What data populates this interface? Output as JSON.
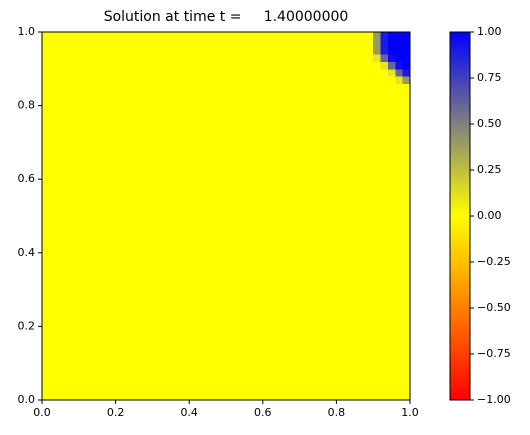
{
  "chart_data": {
    "type": "heatmap",
    "title": "Solution at time t =     1.40000000",
    "x_bins": [
      0,
      0.9,
      0.92,
      0.94,
      0.96,
      0.98,
      1.0
    ],
    "y_bins": [
      0,
      0.86,
      0.88,
      0.9,
      0.92,
      0.94,
      1.0
    ],
    "z": [
      [
        0,
        0,
        0,
        0,
        0,
        0
      ],
      [
        0,
        0,
        0,
        0,
        0.1,
        0.4
      ],
      [
        0,
        0,
        0,
        0.1,
        0.6,
        0.9
      ],
      [
        0,
        0,
        0.1,
        0.6,
        0.95,
        1
      ],
      [
        0,
        0.1,
        0.6,
        0.95,
        1,
        1
      ],
      [
        0,
        0.4,
        0.9,
        1,
        1,
        1
      ]
    ],
    "xlim": [
      0,
      1
    ],
    "ylim": [
      0,
      1
    ],
    "xticks": [
      {
        "value": 0,
        "label": "0.0"
      },
      {
        "value": 0.2,
        "label": "0.2"
      },
      {
        "value": 0.4,
        "label": "0.4"
      },
      {
        "value": 0.6,
        "label": "0.6"
      },
      {
        "value": 0.8,
        "label": "0.8"
      },
      {
        "value": 1,
        "label": "1.0"
      }
    ],
    "yticks": [
      {
        "value": 0,
        "label": "0.0"
      },
      {
        "value": 0.2,
        "label": "0.2"
      },
      {
        "value": 0.4,
        "label": "0.4"
      },
      {
        "value": 0.6,
        "label": "0.6"
      },
      {
        "value": 0.8,
        "label": "0.8"
      },
      {
        "value": 1,
        "label": "1.0"
      }
    ],
    "clim": [
      -1,
      1
    ],
    "colormap": [
      {
        "value": -1,
        "color": "#ff0000"
      },
      {
        "value": 0,
        "color": "#ffff00"
      },
      {
        "value": 1,
        "color": "#0000ff"
      }
    ],
    "cticks": [
      {
        "value": -1,
        "label": "−1.00"
      },
      {
        "value": -0.75,
        "label": "−0.75"
      },
      {
        "value": -0.5,
        "label": "−0.50"
      },
      {
        "value": -0.25,
        "label": "−0.25"
      },
      {
        "value": 0,
        "label": "0.00"
      },
      {
        "value": 0.25,
        "label": "0.25"
      },
      {
        "value": 0.5,
        "label": "0.50"
      },
      {
        "value": 0.75,
        "label": "0.75"
      },
      {
        "value": 1,
        "label": "1.00"
      }
    ]
  }
}
